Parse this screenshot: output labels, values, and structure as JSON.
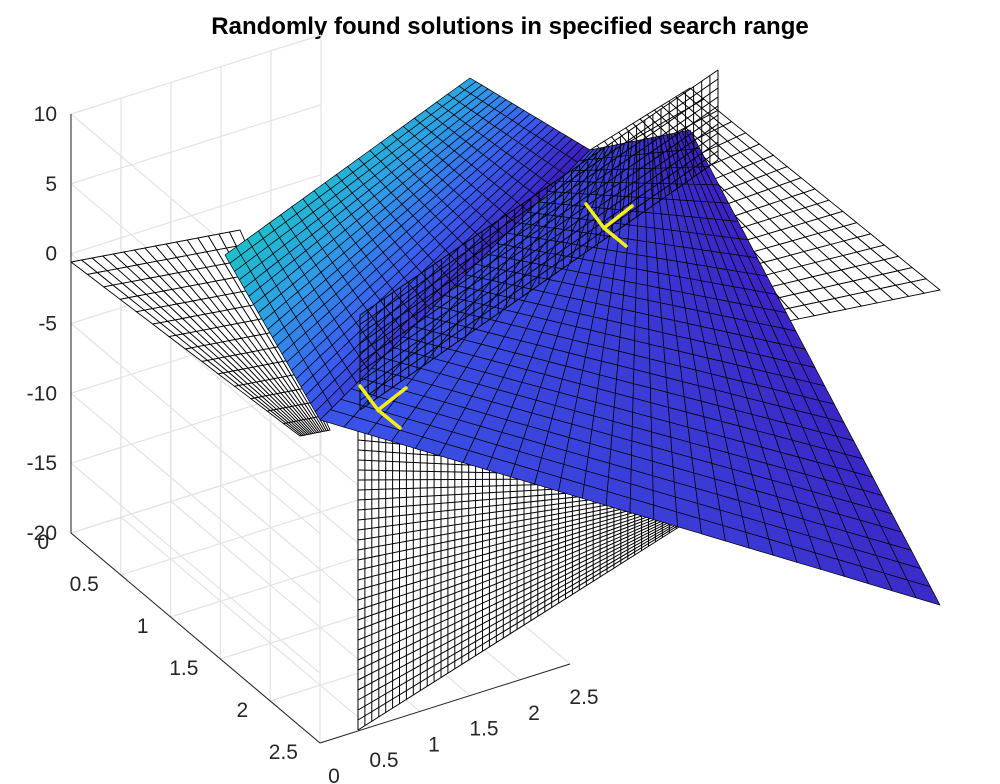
{
  "chart_data": {
    "type": "surface",
    "title": "Randomly found solutions in specified search range",
    "xlabel": "",
    "ylabel": "",
    "zlabel": "",
    "xlim": [
      0,
      2.5
    ],
    "ylim": [
      0,
      2.5
    ],
    "zlim": [
      -20,
      10
    ],
    "z_ticks": [
      "10",
      "5",
      "0",
      "-5",
      "-10",
      "-15",
      "-20"
    ],
    "x_ticks": [
      "0",
      "0.5",
      "1",
      "1.5",
      "2",
      "2.5"
    ],
    "y_ticks": [
      "0",
      "0.5",
      "1",
      "1.5",
      "2",
      "2.5"
    ],
    "grid": true,
    "surfaces": [
      {
        "name": "",
        "style": "wireframe",
        "edge_color": "#000000"
      },
      {
        "name": "",
        "style": "filled",
        "colormap": [
          "#3b1fbf",
          "#3a5df0",
          "#2f9fe6",
          "#1bc3c7"
        ]
      }
    ],
    "solutions": [
      {
        "x": 0.5,
        "y": 0.5,
        "z": 0,
        "color": "#f2ef11"
      },
      {
        "x": 2.0,
        "y": 0.5,
        "z": 0,
        "color": "#f2ef11"
      }
    ]
  }
}
